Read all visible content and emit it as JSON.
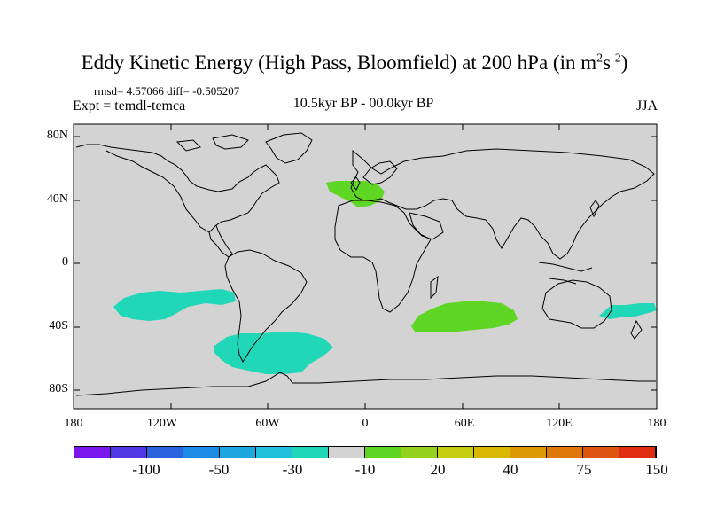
{
  "title": {
    "main": "Eddy Kinetic Energy (High Pass, Bloomfield) at 200 hPa (in m",
    "sup1": "2",
    "mid": "s",
    "sup2": "-2",
    "end": ")"
  },
  "stats": "rmsd= 4.57066 diff= -0.505207",
  "expt": "Expt = temdl-temca",
  "subtitle": "10.5kyr BP - 00.0kyr BP",
  "season": "JJA",
  "map": {
    "lon_range": [
      -180,
      180
    ],
    "lat_range": [
      -90,
      90
    ],
    "projection": "cylindrical equidistant",
    "ocean_color": "#d3d3d3",
    "coastline_color": "#000000",
    "y_ticks": [
      "80N",
      "40N",
      "0",
      "40S",
      "80S"
    ],
    "x_ticks": [
      "180",
      "120W",
      "60W",
      "0",
      "60E",
      "120E",
      "180"
    ],
    "anomaly_regions": [
      {
        "name": "south-pacific",
        "category": "-10",
        "color": "#20d7b8"
      },
      {
        "name": "south-atlantic",
        "category": "-10",
        "color": "#20d7b8"
      },
      {
        "name": "australia-tasman",
        "category": "-10",
        "color": "#20d7b8"
      },
      {
        "name": "western-europe",
        "category": "20",
        "color": "#5fd624"
      },
      {
        "name": "south-indian-ocean",
        "category": "20",
        "color": "#5fd624"
      }
    ]
  },
  "colorbar": {
    "colors": [
      "#7a17ee",
      "#5136e4",
      "#2a63dd",
      "#1c8be6",
      "#1ea6e1",
      "#20bfdc",
      "#20d7b8",
      "#d3d3d3",
      "#5fd624",
      "#96d11d",
      "#c6cc0e",
      "#d9b804",
      "#dd9806",
      "#de7809",
      "#df5512",
      "#e02d11"
    ],
    "labels": [
      "-100",
      "-50",
      "-30",
      "-10",
      "20",
      "40",
      "75",
      "150"
    ]
  }
}
